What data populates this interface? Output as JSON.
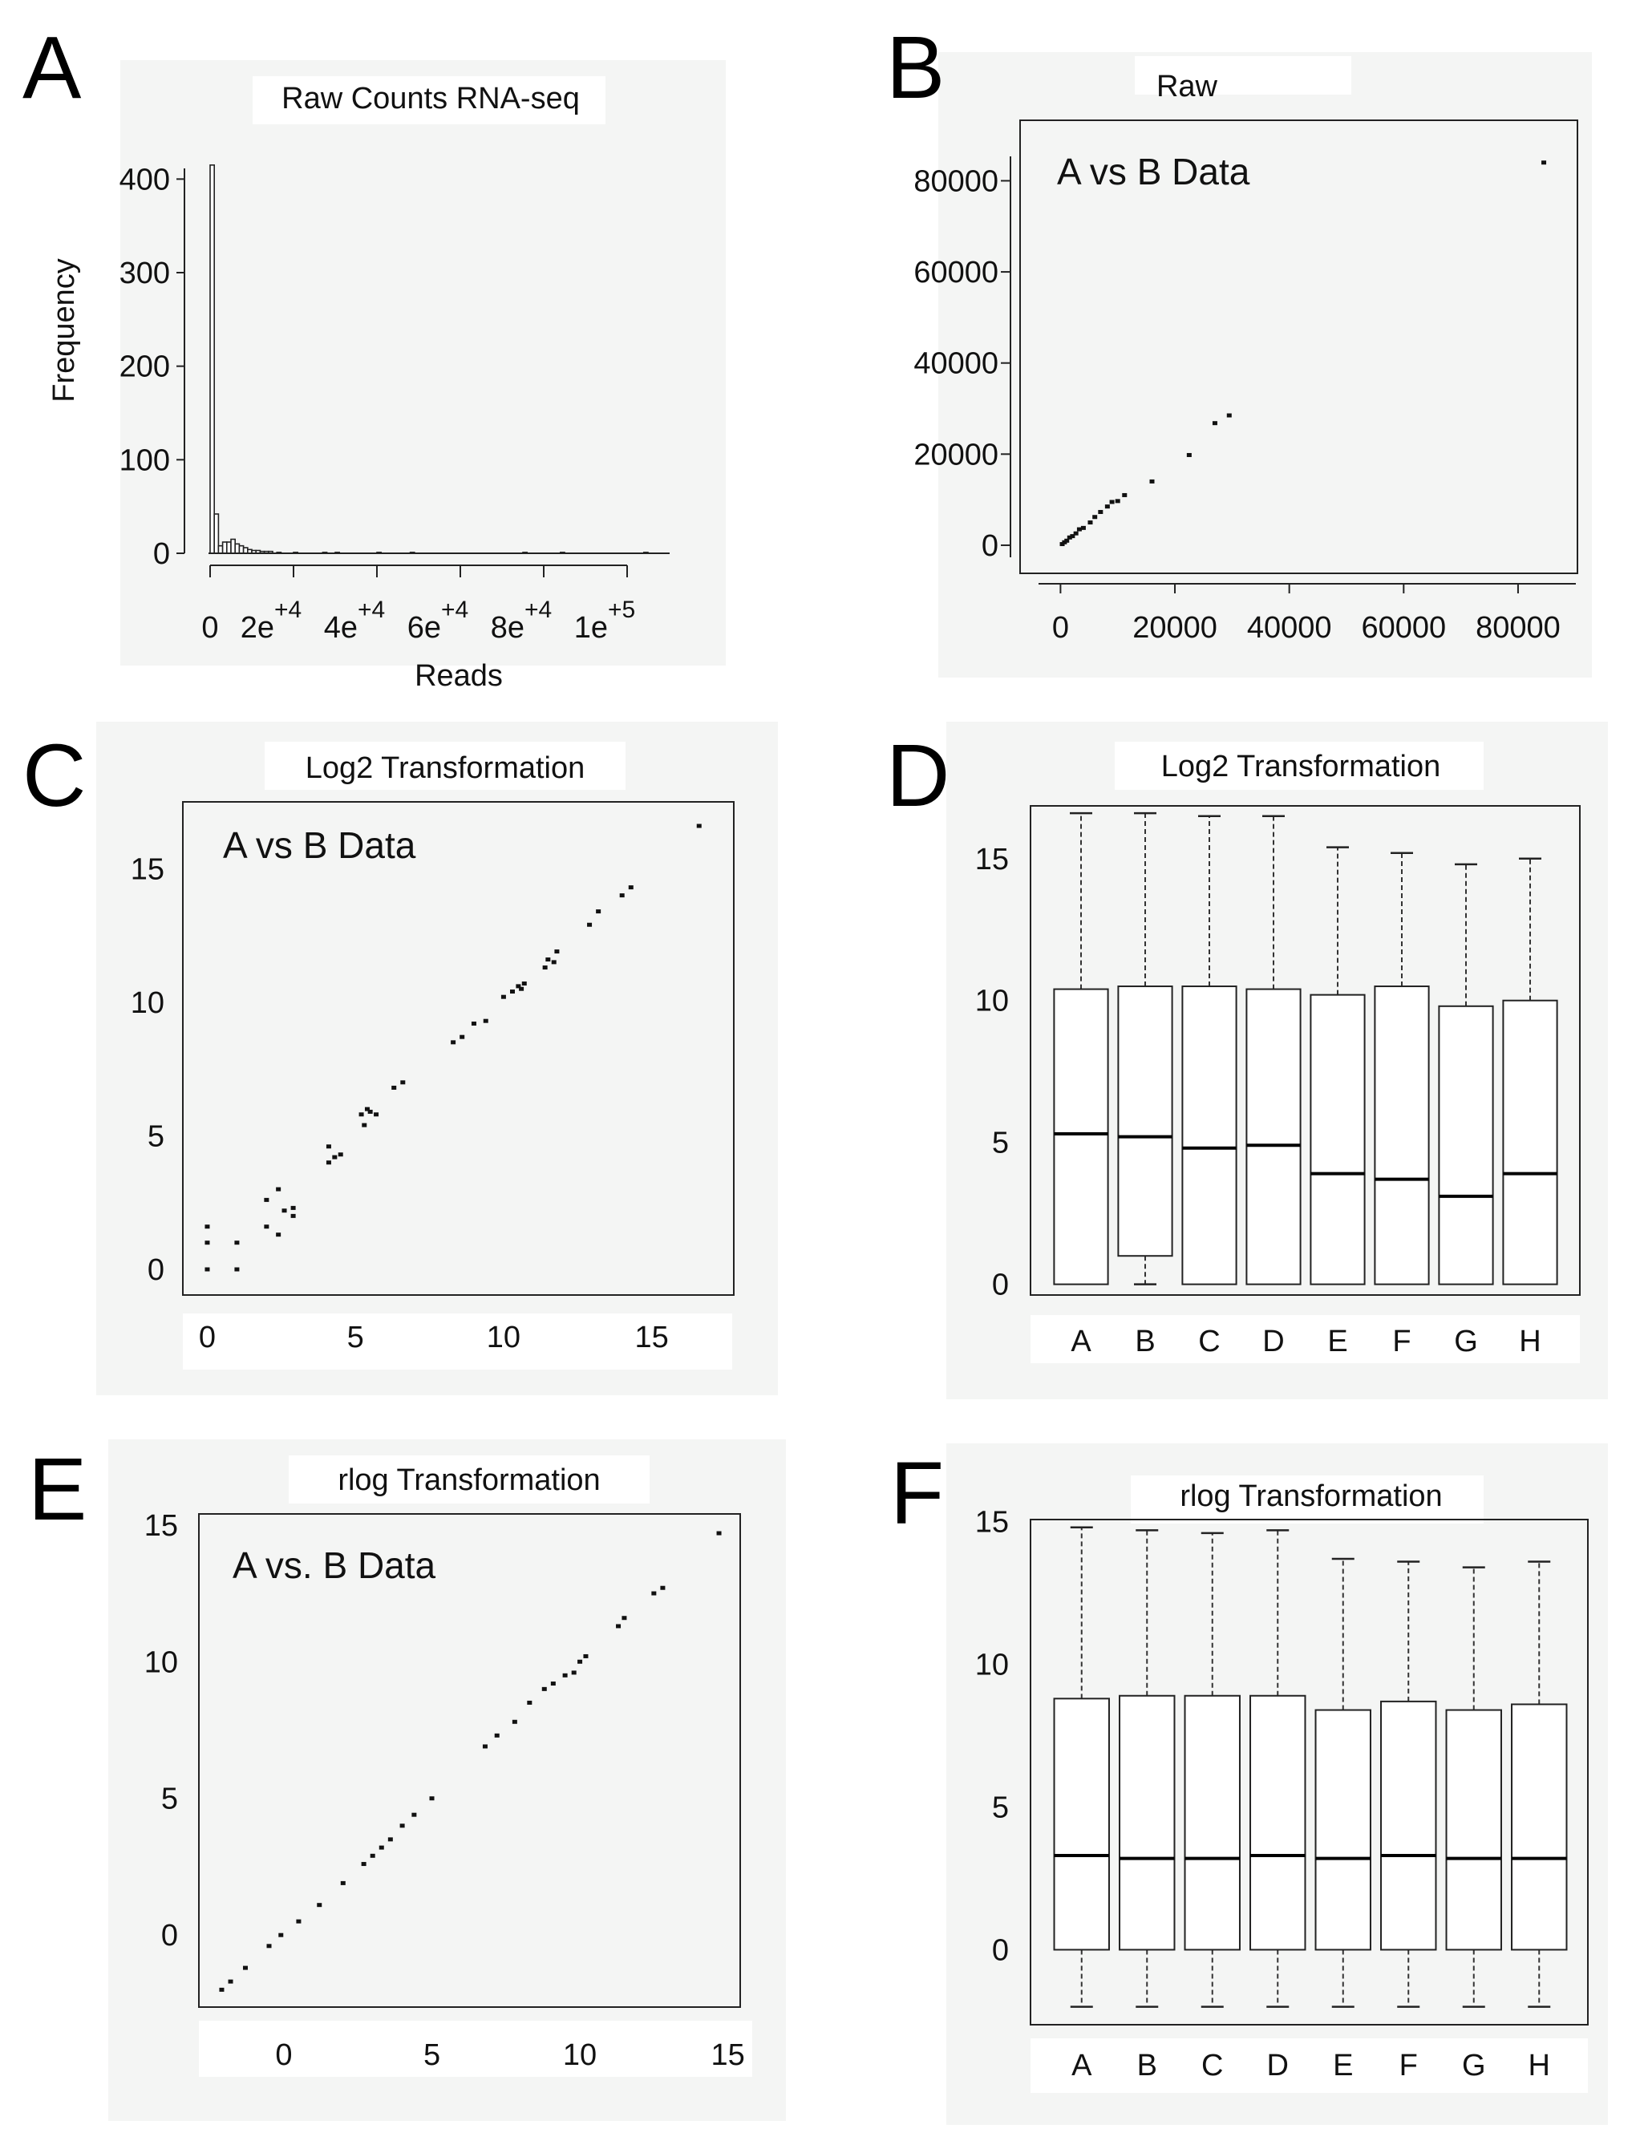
{
  "chart_data": [
    {
      "panel": "A",
      "type": "bar",
      "title": "Raw Counts RNA-seq",
      "xlabel": "Reads",
      "ylabel": "Frequency",
      "xlim": [
        0,
        115000
      ],
      "ylim": [
        0,
        420
      ],
      "yticks": [
        0,
        100,
        200,
        300,
        400
      ],
      "ytick_labels": [
        "0",
        "100",
        "200",
        "300",
        "400"
      ],
      "xticks": [
        0,
        20000,
        40000,
        60000,
        80000,
        100000
      ],
      "xtick_labels": [
        {
          "base": "0",
          "exp": ""
        },
        {
          "base": "2e",
          "exp": "+4"
        },
        {
          "base": "4e",
          "exp": "+4"
        },
        {
          "base": "6e",
          "exp": "+4"
        },
        {
          "base": "8e",
          "exp": "+4"
        },
        {
          "base": "1e",
          "exp": "+5"
        }
      ],
      "bin_width": 1000,
      "bins_start": [
        0,
        1000,
        2000,
        3000,
        4000,
        5000,
        6000,
        7000,
        8000,
        9000,
        10000,
        11000,
        12000,
        13000,
        14000,
        16000,
        20000,
        27000,
        30000,
        40000,
        48000,
        75000,
        84000,
        104000
      ],
      "counts": [
        415,
        42,
        8,
        12,
        12,
        15,
        10,
        8,
        6,
        4,
        3,
        3,
        2,
        2,
        2,
        1,
        1,
        1,
        1,
        1,
        1,
        1,
        1,
        1
      ]
    },
    {
      "panel": "B",
      "type": "scatter",
      "title": "Raw",
      "inset_label": "A vs B Data",
      "xlim": [
        -3000,
        88000
      ],
      "ylim": [
        -3000,
        88000
      ],
      "xticks": [
        0,
        20000,
        40000,
        60000,
        80000
      ],
      "xtick_labels": [
        "0",
        "20000",
        "40000",
        "60000",
        "80000"
      ],
      "yticks": [
        0,
        20000,
        40000,
        60000,
        80000
      ],
      "ytick_labels": [
        "0",
        "20000",
        "40000",
        "60000",
        "80000"
      ],
      "x": [
        300,
        700,
        1100,
        1600,
        2100,
        2700,
        3300,
        4000,
        5200,
        6000,
        7000,
        8200,
        9000,
        10000,
        11200,
        16000,
        22500,
        27000,
        29500,
        84500
      ],
      "y": [
        250,
        650,
        1000,
        1700,
        2000,
        2600,
        3500,
        3800,
        5000,
        6200,
        7300,
        8500,
        9500,
        9700,
        11000,
        14000,
        19800,
        26800,
        28500,
        84000
      ]
    },
    {
      "panel": "C",
      "type": "scatter",
      "title": "Log2 Transformation",
      "inset_label": "A vs B Data",
      "xlim": [
        -0.5,
        17.5
      ],
      "ylim": [
        -0.6,
        17.2
      ],
      "xticks": [
        0,
        5,
        10,
        15
      ],
      "xtick_labels": [
        "0",
        "5",
        "10",
        "15"
      ],
      "yticks": [
        0,
        5,
        10,
        15
      ],
      "ytick_labels": [
        "0",
        "5",
        "10",
        "15"
      ],
      "x": [
        0,
        0,
        0,
        1,
        1,
        2,
        2,
        2.4,
        2.4,
        2.6,
        2.9,
        2.9,
        4.1,
        4.1,
        4.3,
        4.5,
        5.2,
        5.3,
        5.4,
        5.5,
        5.7,
        6.3,
        6.6,
        8.3,
        8.6,
        9.0,
        9.4,
        10.0,
        10.3,
        10.5,
        10.6,
        10.7,
        11.4,
        11.5,
        11.7,
        11.8,
        12.9,
        13.2,
        14.0,
        14.3,
        16.6
      ],
      "y": [
        0,
        1.0,
        1.6,
        0,
        1.0,
        1.6,
        2.6,
        1.3,
        3.0,
        2.2,
        2.0,
        2.3,
        4.0,
        4.6,
        4.2,
        4.3,
        5.8,
        5.4,
        6.0,
        5.9,
        5.8,
        6.8,
        7.0,
        8.5,
        8.7,
        9.2,
        9.3,
        10.2,
        10.4,
        10.6,
        10.5,
        10.7,
        11.3,
        11.6,
        11.5,
        11.9,
        12.9,
        13.4,
        14.0,
        14.3,
        16.6
      ]
    },
    {
      "panel": "D",
      "type": "box",
      "title": "Log2 Transformation",
      "categories": [
        "A",
        "B",
        "C",
        "D",
        "E",
        "F",
        "G",
        "H"
      ],
      "ylim": [
        -1,
        17
      ],
      "yticks": [
        0,
        5,
        10,
        15
      ],
      "ytick_labels": [
        "0",
        "5",
        "10",
        "15"
      ],
      "boxes": [
        {
          "min": 0,
          "q1": 0,
          "median": 5.3,
          "q3": 10.4,
          "max": 16.6
        },
        {
          "min": 0,
          "q1": 1.0,
          "median": 5.2,
          "q3": 10.5,
          "max": 16.6
        },
        {
          "min": 0,
          "q1": 0,
          "median": 4.8,
          "q3": 10.5,
          "max": 16.5
        },
        {
          "min": 0,
          "q1": 0,
          "median": 4.9,
          "q3": 10.4,
          "max": 16.5
        },
        {
          "min": 0,
          "q1": 0,
          "median": 3.9,
          "q3": 10.2,
          "max": 15.4
        },
        {
          "min": 0,
          "q1": 0,
          "median": 3.7,
          "q3": 10.5,
          "max": 15.2
        },
        {
          "min": 0,
          "q1": 0,
          "median": 3.1,
          "q3": 9.8,
          "max": 14.8
        },
        {
          "min": 0,
          "q1": 0,
          "median": 3.9,
          "q3": 10.0,
          "max": 15.0
        }
      ]
    },
    {
      "panel": "E",
      "type": "scatter",
      "title": "rlog Transformation",
      "inset_label": "A vs. B Data",
      "xlim": [
        -2.6,
        15.2
      ],
      "ylim": [
        -2.4,
        15.2
      ],
      "xticks": [
        0,
        5,
        10,
        15
      ],
      "xtick_labels": [
        "0",
        "5",
        "10",
        "15"
      ],
      "yticks": [
        0,
        5,
        10,
        15
      ],
      "ytick_labels": [
        "0",
        "5",
        "10",
        "15"
      ],
      "x": [
        -2.1,
        -1.8,
        -1.3,
        -0.5,
        -0.1,
        0.5,
        1.2,
        2.0,
        2.7,
        3.0,
        3.3,
        3.6,
        4.0,
        4.4,
        5.0,
        6.8,
        7.2,
        7.8,
        8.3,
        8.8,
        9.1,
        9.5,
        9.8,
        10.0,
        10.2,
        11.3,
        11.5,
        12.5,
        12.8,
        14.7
      ],
      "y": [
        -2.0,
        -1.7,
        -1.2,
        -0.4,
        0,
        0.5,
        1.1,
        1.9,
        2.6,
        2.9,
        3.2,
        3.5,
        4.0,
        4.4,
        5.0,
        6.9,
        7.3,
        7.8,
        8.5,
        9.0,
        9.2,
        9.5,
        9.6,
        10.0,
        10.2,
        11.3,
        11.6,
        12.5,
        12.7,
        14.7
      ]
    },
    {
      "panel": "F",
      "type": "box",
      "title": "rlog Transformation",
      "categories": [
        "A",
        "B",
        "C",
        "D",
        "E",
        "F",
        "G",
        "H"
      ],
      "ylim": [
        -2.6,
        15.3
      ],
      "yticks": [
        0,
        5,
        10,
        15
      ],
      "ytick_labels": [
        "0",
        "5",
        "10",
        "15"
      ],
      "boxes": [
        {
          "min": -2,
          "q1": 0,
          "median": 3.3,
          "q3": 8.8,
          "max": 14.8
        },
        {
          "min": -2,
          "q1": 0,
          "median": 3.2,
          "q3": 8.9,
          "max": 14.7
        },
        {
          "min": -2,
          "q1": 0,
          "median": 3.2,
          "q3": 8.9,
          "max": 14.6
        },
        {
          "min": -2,
          "q1": 0,
          "median": 3.3,
          "q3": 8.9,
          "max": 14.7
        },
        {
          "min": -2,
          "q1": 0,
          "median": 3.2,
          "q3": 8.4,
          "max": 13.7
        },
        {
          "min": -2,
          "q1": 0,
          "median": 3.3,
          "q3": 8.7,
          "max": 13.6
        },
        {
          "min": -2,
          "q1": 0,
          "median": 3.2,
          "q3": 8.4,
          "max": 13.4
        },
        {
          "min": -2,
          "q1": 0,
          "median": 3.2,
          "q3": 8.6,
          "max": 13.6
        }
      ]
    }
  ]
}
